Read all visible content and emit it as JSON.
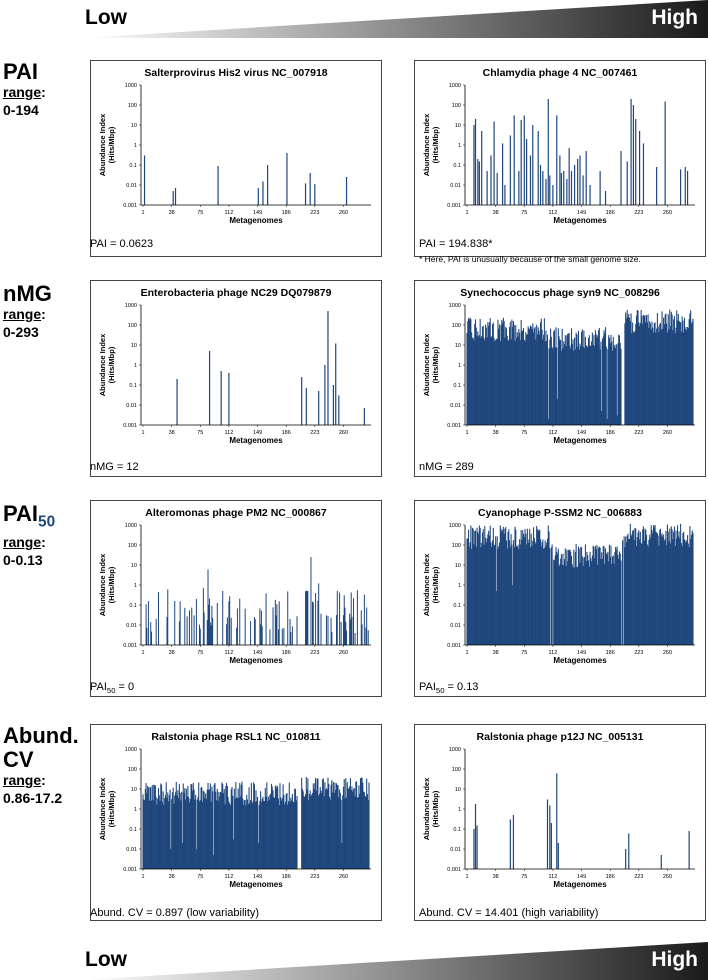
{
  "header": {
    "low": "Low",
    "high": "High"
  },
  "footer": {
    "low": "Low",
    "high": "High"
  },
  "metrics": [
    {
      "name": "PAI",
      "range_label": "range",
      "range_colon": ":",
      "range_value": "0-194"
    },
    {
      "name": "nMG",
      "range_label": "range",
      "range_colon": ":",
      "range_value": "0-293"
    },
    {
      "name_base": "PAI",
      "name_sub": "50",
      "range_label": "range",
      "range_colon": ":",
      "range_value": "0-0.13"
    },
    {
      "name_line1": "Abund.",
      "name_line2": "CV",
      "range_label": "range",
      "range_colon": ":",
      "range_value": "0.86-17.2"
    }
  ],
  "captions": {
    "pai_low": "PAI = 0.0623",
    "pai_high": "PAI = 194.838*",
    "pai_note": "* Here, PAI is unusually because of the small genome size.",
    "nmg_low": "nMG = 12",
    "nmg_high": "nMG = 289",
    "pai50_low_base": "PAI",
    "pai50_low_sub": "50",
    "pai50_low_rest": " = 0",
    "pai50_high_base": "PAI",
    "pai50_high_sub": "50",
    "pai50_high_rest": " = 0.13",
    "cv_low": "Abund. CV = 0.897 (low variability)",
    "cv_high": "Abund. CV = 14.401 (high variability)"
  },
  "colors": {
    "bar": "#1f477d",
    "text": "#000000",
    "grad_start": "#ffffff",
    "grad_end": "#1a1a1a"
  },
  "chart_data": [
    {
      "id": "c1",
      "type": "bar",
      "title": "Salterprovirus His2 virus NC_007918",
      "xlabel": "Metagenomes",
      "ylabel": [
        "Abundance Index",
        "(Hits/Mbp)"
      ],
      "x_ticks": [
        1,
        38,
        75,
        112,
        149,
        186,
        223,
        260
      ],
      "y_ticks": [
        "1000",
        "100",
        "10",
        "1",
        "0.1",
        "0.01",
        "0.001"
      ],
      "ylim": [
        0.001,
        1000
      ],
      "x_count": 293,
      "pattern": "sparse",
      "values": [
        [
          3,
          0.3
        ],
        [
          40,
          0.005
        ],
        [
          43,
          0.007
        ],
        [
          98,
          0.09
        ],
        [
          150,
          0.007
        ],
        [
          156,
          0.015
        ],
        [
          162,
          0.1
        ],
        [
          187,
          0.4
        ],
        [
          211,
          0.012
        ],
        [
          217,
          0.04
        ],
        [
          223,
          0.011
        ],
        [
          264,
          0.025
        ]
      ]
    },
    {
      "id": "c2",
      "type": "bar",
      "title": "Chlamydia phage 4 NC_007461",
      "xlabel": "Metagenomes",
      "ylabel": [
        "Abundance Index",
        "(Hits/Mbp)"
      ],
      "x_ticks": [
        1,
        38,
        75,
        112,
        149,
        186,
        223,
        260
      ],
      "y_ticks": [
        "1000",
        "100",
        "10",
        "1",
        "0.1",
        "0.01",
        "0.001"
      ],
      "ylim": [
        0.001,
        1000
      ],
      "x_count": 293,
      "pattern": "sparse",
      "values": [
        [
          10,
          10
        ],
        [
          12,
          20
        ],
        [
          15,
          0.2
        ],
        [
          17,
          0.15
        ],
        [
          20,
          5
        ],
        [
          27,
          0.05
        ],
        [
          32,
          0.3
        ],
        [
          36,
          15
        ],
        [
          40,
          0.04
        ],
        [
          47,
          1.2
        ],
        [
          50,
          0.01
        ],
        [
          57,
          3
        ],
        [
          62,
          30
        ],
        [
          68,
          0.05
        ],
        [
          71,
          18
        ],
        [
          75,
          30
        ],
        [
          78,
          2
        ],
        [
          83,
          0.3
        ],
        [
          86,
          10
        ],
        [
          93,
          5
        ],
        [
          96,
          0.1
        ],
        [
          99,
          0.05
        ],
        [
          103,
          0.02
        ],
        [
          106,
          200
        ],
        [
          108,
          0.03
        ],
        [
          112,
          0.01
        ],
        [
          117,
          30
        ],
        [
          121,
          0.3
        ],
        [
          123,
          0.04
        ],
        [
          126,
          0.05
        ],
        [
          130,
          0.02
        ],
        [
          133,
          0.7
        ],
        [
          136,
          0.05
        ],
        [
          140,
          0.1
        ],
        [
          144,
          0.2
        ],
        [
          147,
          0.3
        ],
        [
          151,
          0.03
        ],
        [
          155,
          0.5
        ],
        [
          160,
          0.01
        ],
        [
          173,
          0.05
        ],
        [
          180,
          0.005
        ],
        [
          200,
          0.5
        ],
        [
          208,
          0.15
        ],
        [
          213,
          200
        ],
        [
          216,
          100
        ],
        [
          219,
          20
        ],
        [
          224,
          5
        ],
        [
          229,
          1.2
        ],
        [
          246,
          0.08
        ],
        [
          257,
          150
        ],
        [
          277,
          0.06
        ],
        [
          283,
          0.08
        ],
        [
          286,
          0.05
        ]
      ]
    },
    {
      "id": "c3",
      "type": "bar",
      "title": "Enterobacteria phage NC29 DQ079879",
      "xlabel": "Metagenomes",
      "ylabel": [
        "Abundance Index",
        "(Hits/Mbp)"
      ],
      "x_ticks": [
        1,
        38,
        75,
        112,
        149,
        186,
        223,
        260
      ],
      "y_ticks": [
        "1000",
        "100",
        "10",
        "1",
        "0.1",
        "0.01",
        "0.001"
      ],
      "ylim": [
        0.001,
        1000
      ],
      "x_count": 293,
      "pattern": "sparse",
      "values": [
        [
          45,
          0.2
        ],
        [
          87,
          5
        ],
        [
          102,
          0.5
        ],
        [
          112,
          0.4
        ],
        [
          206,
          0.25
        ],
        [
          212,
          0.07
        ],
        [
          228,
          0.05
        ],
        [
          236,
          1
        ],
        [
          240,
          500
        ],
        [
          247,
          0.1
        ],
        [
          250,
          12
        ],
        [
          254,
          0.03
        ],
        [
          287,
          0.007
        ]
      ]
    },
    {
      "id": "c4",
      "type": "bar",
      "title": "Synechococcus phage syn9 NC_008296",
      "xlabel": "Metagenomes",
      "ylabel": [
        "Abundance Index",
        "(Hits/Mbp)"
      ],
      "x_ticks": [
        1,
        38,
        75,
        112,
        149,
        186,
        223,
        260
      ],
      "y_ticks": [
        "1000",
        "100",
        "10",
        "1",
        "0.1",
        "0.01",
        "0.001"
      ],
      "ylim": [
        0.001,
        1000
      ],
      "x_count": 293,
      "pattern": "dense",
      "dense_segments": [
        [
          1,
          105,
          60
        ],
        [
          106,
          200,
          20
        ],
        [
          205,
          293,
          150
        ]
      ],
      "gaps": [
        [
          106,
          0.002
        ],
        [
          118,
          0.02
        ],
        [
          175,
          0.005
        ],
        [
          182,
          0.002
        ],
        [
          195,
          0.003
        ],
        [
          201,
          0.001
        ],
        [
          202,
          0.001
        ],
        [
          203,
          0.001
        ],
        [
          204,
          0.001
        ]
      ]
    },
    {
      "id": "c5",
      "type": "bar",
      "title": "Alteromonas phage PM2 NC_000867",
      "xlabel": "Metagenomes",
      "ylabel": [
        "Abundance Index",
        "(Hits/Mbp)"
      ],
      "x_ticks": [
        1,
        38,
        75,
        112,
        149,
        186,
        223,
        260
      ],
      "y_ticks": [
        "1000",
        "100",
        "10",
        "1",
        "0.1",
        "0.01",
        "0.001"
      ],
      "ylim": [
        0.001,
        1000
      ],
      "x_count": 293,
      "pattern": "scattered",
      "scatter_mid": 0.05,
      "spikes": [
        [
          33,
          0.6
        ],
        [
          85,
          6
        ],
        [
          79,
          0.7
        ],
        [
          104,
          0.5
        ],
        [
          218,
          25
        ],
        [
          228,
          1.2
        ],
        [
          213,
          0.5
        ],
        [
          224,
          0.4
        ]
      ]
    },
    {
      "id": "c6",
      "type": "bar",
      "title": "Cyanophage P-SSM2 NC_006883",
      "xlabel": "Metagenomes",
      "ylabel": [
        "Abundance Index",
        "(Hits/Mbp)"
      ],
      "x_ticks": [
        1,
        38,
        75,
        112,
        149,
        186,
        223,
        260
      ],
      "y_ticks": [
        "1000",
        "100",
        "10",
        "1",
        "0.1",
        "0.01",
        "0.001"
      ],
      "ylim": [
        0.001,
        1000
      ],
      "x_count": 293,
      "pattern": "dense",
      "dense_segments": [
        [
          1,
          110,
          250
        ],
        [
          111,
          200,
          30
        ],
        [
          201,
          293,
          300
        ]
      ],
      "gaps": [
        [
          109,
          0.001
        ],
        [
          112,
          0.001
        ],
        [
          201,
          0.001
        ],
        [
          203,
          0.001
        ],
        [
          39,
          0.5
        ],
        [
          60,
          1
        ]
      ]
    },
    {
      "id": "c7",
      "type": "bar",
      "title": "Ralstonia phage RSL1 NC_010811",
      "xlabel": "Metagenomes",
      "ylabel": [
        "Abundance Index",
        "(Hits/Mbp)"
      ],
      "x_ticks": [
        1,
        38,
        75,
        112,
        149,
        186,
        223,
        260
      ],
      "y_ticks": [
        "1000",
        "100",
        "10",
        "1",
        "0.1",
        "0.01",
        "0.001"
      ],
      "ylim": [
        0.001,
        1000
      ],
      "x_count": 293,
      "pattern": "dense",
      "dense_segments": [
        [
          1,
          200,
          6
        ],
        [
          206,
          293,
          10
        ]
      ],
      "gaps": [
        [
          37,
          0.01
        ],
        [
          52,
          0.02
        ],
        [
          70,
          0.01
        ],
        [
          92,
          0.005
        ],
        [
          118,
          0.03
        ],
        [
          150,
          0.02
        ],
        [
          201,
          0.001
        ],
        [
          202,
          0.001
        ],
        [
          203,
          0.001
        ],
        [
          204,
          0.001
        ],
        [
          205,
          0.001
        ],
        [
          258,
          0.02
        ]
      ]
    },
    {
      "id": "c8",
      "type": "bar",
      "title": "Ralstonia phage p12J NC_005131",
      "xlabel": "Metagenomes",
      "ylabel": [
        "Abundance Index",
        "(Hits/Mbp)"
      ],
      "x_ticks": [
        1,
        38,
        75,
        112,
        149,
        186,
        223,
        260
      ],
      "y_ticks": [
        "1000",
        "100",
        "10",
        "1",
        "0.1",
        "0.01",
        "0.001"
      ],
      "ylim": [
        0.001,
        1000
      ],
      "x_count": 293,
      "pattern": "sparse",
      "values": [
        [
          10,
          0.1
        ],
        [
          12,
          1.8
        ],
        [
          14,
          0.15
        ],
        [
          57,
          0.3
        ],
        [
          61,
          0.5
        ],
        [
          105,
          3
        ],
        [
          108,
          1.5
        ],
        [
          110,
          0.2
        ],
        [
          117,
          60
        ],
        [
          119,
          0.02
        ],
        [
          206,
          0.01
        ],
        [
          210,
          0.06
        ],
        [
          252,
          0.005
        ],
        [
          288,
          0.08
        ]
      ]
    }
  ]
}
